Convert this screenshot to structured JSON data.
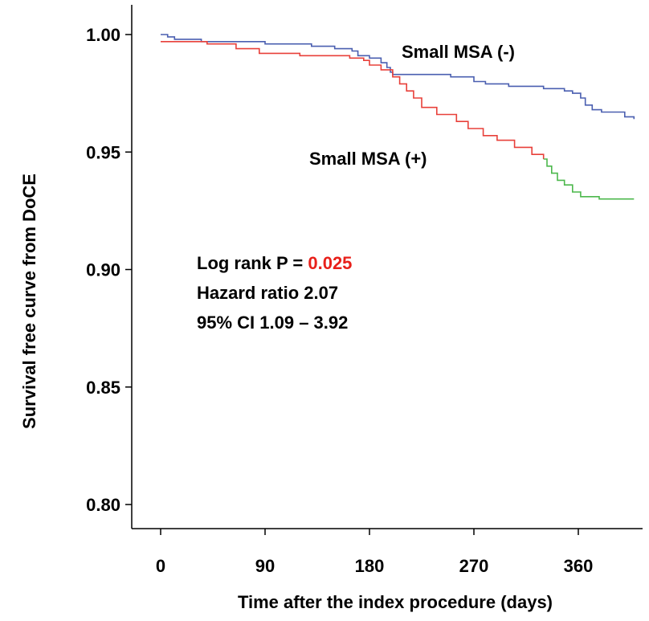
{
  "chart_data": {
    "type": "line",
    "xlabel": "Time  after the index procedure (days)",
    "ylabel": "Survival free curve from DoCE",
    "xlim": [
      -10,
      420
    ],
    "ylim": [
      0.795,
      1.012
    ],
    "x_ticks": [
      0,
      90,
      180,
      270,
      360
    ],
    "x_tick_labels": [
      "0",
      "90",
      "180",
      "270",
      "360"
    ],
    "y_ticks": [
      0.8,
      0.85,
      0.9,
      0.95,
      1.0
    ],
    "y_tick_labels": [
      "0.80",
      "0.85",
      "0.90",
      "0.95",
      "1.00"
    ],
    "grid": false,
    "series": [
      {
        "name": "Small MSA (-)",
        "color": "#4a5fb0",
        "step": true,
        "points": [
          [
            0,
            1.0
          ],
          [
            6,
            0.999
          ],
          [
            12,
            0.998
          ],
          [
            35,
            0.997
          ],
          [
            90,
            0.996
          ],
          [
            130,
            0.995
          ],
          [
            150,
            0.994
          ],
          [
            165,
            0.993
          ],
          [
            170,
            0.991
          ],
          [
            180,
            0.99
          ],
          [
            190,
            0.988
          ],
          [
            195,
            0.986
          ],
          [
            198,
            0.984
          ],
          [
            200,
            0.983
          ],
          [
            250,
            0.982
          ],
          [
            270,
            0.98
          ],
          [
            280,
            0.979
          ],
          [
            300,
            0.978
          ],
          [
            330,
            0.977
          ],
          [
            348,
            0.976
          ],
          [
            355,
            0.975
          ],
          [
            362,
            0.973
          ],
          [
            366,
            0.97
          ],
          [
            372,
            0.968
          ],
          [
            380,
            0.967
          ],
          [
            400,
            0.965
          ],
          [
            408,
            0.964
          ]
        ]
      },
      {
        "name": "Small MSA (+)",
        "color": "#e8403a",
        "step": true,
        "points": [
          [
            0,
            0.997
          ],
          [
            40,
            0.996
          ],
          [
            65,
            0.994
          ],
          [
            85,
            0.992
          ],
          [
            120,
            0.991
          ],
          [
            163,
            0.99
          ],
          [
            175,
            0.989
          ],
          [
            180,
            0.987
          ],
          [
            190,
            0.985
          ],
          [
            200,
            0.982
          ],
          [
            206,
            0.979
          ],
          [
            212,
            0.976
          ],
          [
            218,
            0.973
          ],
          [
            225,
            0.969
          ],
          [
            238,
            0.966
          ],
          [
            255,
            0.963
          ],
          [
            265,
            0.96
          ],
          [
            278,
            0.957
          ],
          [
            290,
            0.955
          ],
          [
            305,
            0.952
          ],
          [
            320,
            0.949
          ],
          [
            330,
            0.947
          ]
        ]
      },
      {
        "name": "",
        "color": "#4cb84c",
        "step": true,
        "points": [
          [
            330,
            0.947
          ],
          [
            333,
            0.944
          ],
          [
            337,
            0.941
          ],
          [
            342,
            0.938
          ],
          [
            348,
            0.936
          ],
          [
            355,
            0.933
          ],
          [
            362,
            0.931
          ],
          [
            378,
            0.93
          ],
          [
            408,
            0.93
          ]
        ]
      }
    ],
    "annotations": {
      "label_neg": "Small MSA (-)",
      "label_pos": "Small MSA (+)",
      "logrank_prefix": "Log rank P = ",
      "logrank_value": "0.025",
      "logrank_value_color": "#e8201a",
      "hazard": "Hazard ratio 2.07",
      "ci": "95% CI 1.09 – 3.92"
    }
  }
}
